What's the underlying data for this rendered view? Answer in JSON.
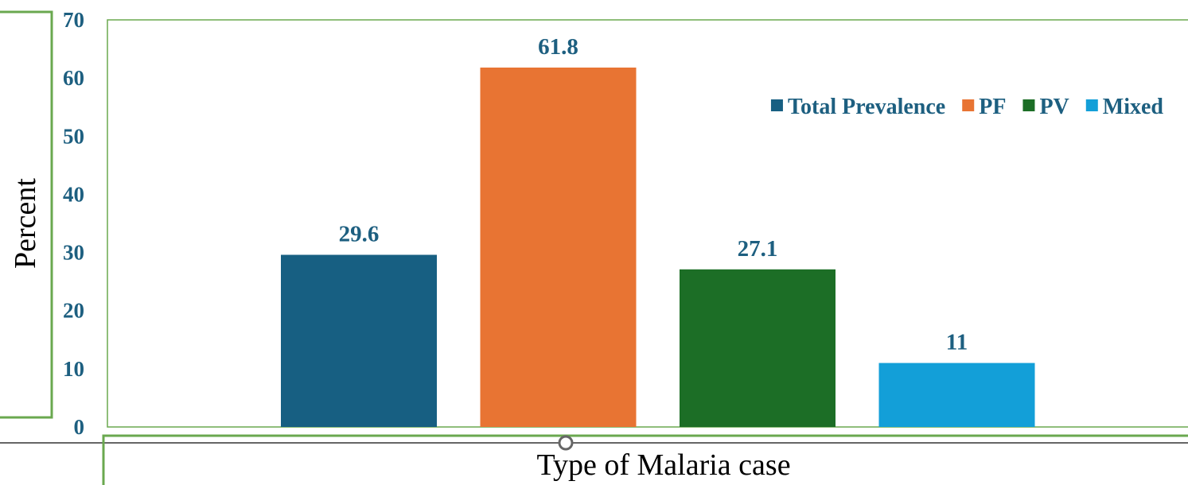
{
  "chart_data": {
    "type": "bar",
    "categories": [
      "Total Prevalence",
      "PF",
      "PV",
      "Mixed"
    ],
    "values": [
      29.6,
      61.8,
      27.1,
      11
    ],
    "data_labels": [
      "29.6",
      "61.8",
      "27.1",
      "11"
    ],
    "title": "",
    "xlabel": "Type of Malaria case",
    "ylabel": "Percent",
    "ylim": [
      0,
      70
    ],
    "yticks": [
      0,
      10,
      20,
      30,
      40,
      50,
      60,
      70
    ],
    "grid": false,
    "legend": {
      "position": "top-right",
      "entries": [
        "Total Prevalence",
        "PF",
        "PV",
        "Mixed"
      ]
    },
    "colors": [
      "#175f82",
      "#e87433",
      "#1c6e26",
      "#139fd8"
    ]
  }
}
